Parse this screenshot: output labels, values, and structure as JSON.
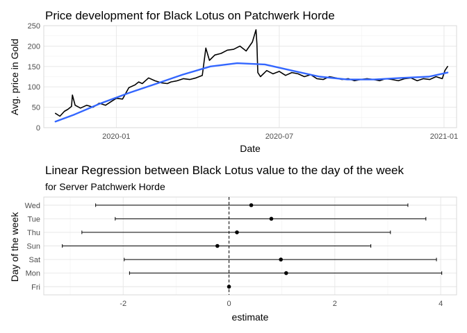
{
  "chart_data": [
    {
      "type": "line",
      "title": "Price development for Black Lotus on Patchwerk Horde",
      "xlabel": "Date",
      "ylabel": "Avg. price in Gold",
      "xlim": [
        "2019-10-12",
        "2021-01-15"
      ],
      "ylim": [
        0,
        250
      ],
      "x_ticks": [
        "2020-01",
        "2020-07",
        "2021-01"
      ],
      "x_tick_dates": [
        "2020-01-01",
        "2020-07-01",
        "2021-01-01"
      ],
      "y_ticks": [
        0,
        50,
        100,
        150,
        200,
        250
      ],
      "grid": true,
      "series": [
        {
          "color": "#000000",
          "x": [
            "2019-10-25",
            "2019-10-30",
            "2019-11-04",
            "2019-11-08",
            "2019-11-12",
            "2019-11-13",
            "2019-11-16",
            "2019-11-22",
            "2019-11-29",
            "2019-12-06",
            "2019-12-13",
            "2019-12-20",
            "2019-12-27",
            "2020-01-01",
            "2020-01-08",
            "2020-01-15",
            "2020-01-22",
            "2020-01-26",
            "2020-01-30",
            "2020-02-06",
            "2020-02-13",
            "2020-02-20",
            "2020-02-27",
            "2020-03-02",
            "2020-03-09",
            "2020-03-16",
            "2020-03-23",
            "2020-03-30",
            "2020-04-06",
            "2020-04-10",
            "2020-04-14",
            "2020-04-20",
            "2020-04-27",
            "2020-05-04",
            "2020-05-11",
            "2020-05-18",
            "2020-05-25",
            "2020-06-01",
            "2020-06-05",
            "2020-06-06",
            "2020-06-07",
            "2020-06-10",
            "2020-06-17",
            "2020-06-24",
            "2020-07-01",
            "2020-07-08",
            "2020-07-15",
            "2020-07-22",
            "2020-07-29",
            "2020-08-05",
            "2020-08-12",
            "2020-08-19",
            "2020-08-26",
            "2020-09-02",
            "2020-09-09",
            "2020-09-16",
            "2020-09-23",
            "2020-09-30",
            "2020-10-07",
            "2020-10-14",
            "2020-10-21",
            "2020-10-28",
            "2020-11-04",
            "2020-11-11",
            "2020-11-18",
            "2020-11-25",
            "2020-12-02",
            "2020-12-09",
            "2020-12-16",
            "2020-12-23",
            "2020-12-30",
            "2021-01-02",
            "2021-01-05"
          ],
          "y": [
            35,
            28,
            40,
            45,
            52,
            80,
            55,
            48,
            55,
            50,
            60,
            55,
            65,
            72,
            70,
            98,
            105,
            112,
            108,
            122,
            115,
            110,
            108,
            112,
            115,
            120,
            118,
            122,
            128,
            195,
            165,
            178,
            182,
            190,
            192,
            200,
            188,
            210,
            240,
            205,
            135,
            125,
            140,
            132,
            138,
            128,
            135,
            132,
            125,
            130,
            120,
            118,
            125,
            122,
            118,
            120,
            115,
            118,
            120,
            118,
            115,
            120,
            118,
            115,
            120,
            122,
            115,
            120,
            118,
            125,
            120,
            140,
            150
          ]
        },
        {
          "color": "#3366FF",
          "x": [
            "2019-10-25",
            "2019-11-15",
            "2019-12-15",
            "2020-01-15",
            "2020-02-15",
            "2020-03-15",
            "2020-04-15",
            "2020-05-15",
            "2020-06-15",
            "2020-07-15",
            "2020-08-15",
            "2020-09-15",
            "2020-10-15",
            "2020-11-15",
            "2020-12-15",
            "2021-01-05"
          ],
          "y": [
            15,
            32,
            60,
            85,
            108,
            130,
            150,
            158,
            155,
            140,
            125,
            118,
            118,
            122,
            125,
            135
          ]
        }
      ]
    },
    {
      "type": "scatter",
      "title": "Linear Regression between Black Lotus value to the day of the week",
      "subtitle": "for Server Patchwerk Horde",
      "xlabel": "estimate",
      "ylabel": "Day of the week",
      "categories": [
        "Wed",
        "Tue",
        "Thu",
        "Sun",
        "Sat",
        "Mon",
        "Fri"
      ],
      "estimate": [
        0.42,
        0.8,
        0.15,
        -0.22,
        0.98,
        1.08,
        0.0
      ],
      "conf_low": [
        -2.52,
        -2.15,
        -2.78,
        -3.15,
        -1.98,
        -1.88,
        0.0
      ],
      "conf_high": [
        3.38,
        3.72,
        3.05,
        2.68,
        3.92,
        4.02,
        0.0
      ],
      "xlim": [
        -3.5,
        4.3
      ],
      "x_ticks": [
        -2,
        0,
        2,
        4
      ],
      "x_tick_labels": [
        "-2",
        "0",
        "2",
        "4"
      ],
      "reference_line": 0,
      "grid": true
    }
  ]
}
